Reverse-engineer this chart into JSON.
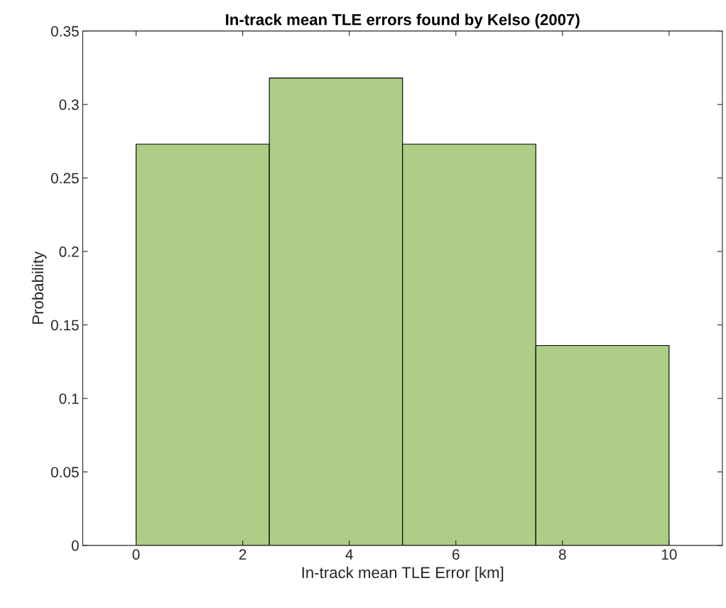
{
  "chart_data": {
    "type": "histogram",
    "title": "In-track mean TLE errors found by Kelso (2007)",
    "xlabel": "In-track mean TLE Error [km]",
    "ylabel": "Probability",
    "bins": [
      0,
      2.5,
      5,
      7.5,
      10
    ],
    "values": [
      0.273,
      0.318,
      0.273,
      0.136
    ],
    "color": "#aecd86",
    "xlim": [
      -1,
      11
    ],
    "xticks": [
      0,
      2,
      4,
      6,
      8,
      10
    ],
    "ylim": [
      0,
      0.35
    ],
    "yticks": [
      0,
      0.05,
      0.1,
      0.15,
      0.2,
      0.25,
      0.3,
      0.35
    ],
    "grid": false
  }
}
